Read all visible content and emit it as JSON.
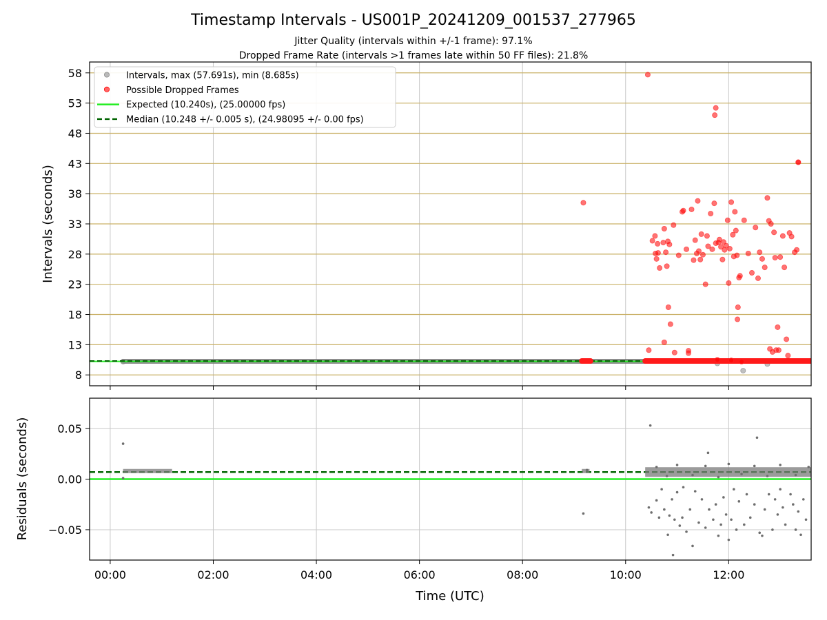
{
  "title": "Timestamp Intervals - US001P_20241209_001537_277965",
  "subtitle_1": "Jitter Quality (intervals within +/-1 frame): 97.1%",
  "subtitle_2": "Dropped Frame Rate (intervals >1 frames late within 50 FF files): 21.8%",
  "colors": {
    "interval_points": "#8c8c8c",
    "dropped_points": "#ff0000",
    "expected_line": "#22ee22",
    "median_line": "#006400",
    "top_grid": "#c9b066",
    "grid": "#c8c8c8"
  },
  "chart_data": [
    {
      "type": "scatter",
      "ylabel": "Intervals (seconds)",
      "ylim": [
        6.2,
        59.8
      ],
      "xlim": [
        -0.4,
        13.6
      ],
      "yticks": [
        "8",
        "13",
        "18",
        "23",
        "28",
        "33",
        "38",
        "43",
        "48",
        "53",
        "58"
      ],
      "grid": "on",
      "legend_position": "top-left",
      "legend": [
        {
          "label": "Intervals, max (57.691s), min (8.685s)",
          "marker": "circle",
          "color": "#8c8c8c"
        },
        {
          "label": "Possible Dropped Frames",
          "marker": "circle",
          "color": "#ff0000"
        },
        {
          "label": "Expected (10.240s), (25.00000 fps)",
          "marker": "line",
          "color": "#22ee22"
        },
        {
          "label": "Median (10.248 +/- 0.005 s), (24.98095 +/- 0.00 fps)",
          "marker": "dashed",
          "color": "#006400"
        }
      ],
      "expected_value": 10.24,
      "median_value": 10.248,
      "series": [
        {
          "name": "Intervals, max (57.691s), min (8.685s)",
          "segment": {
            "x_start": 0.25,
            "x_end": 13.6,
            "y": 10.248
          },
          "points": [
            [
              0.25,
              10.2
            ],
            [
              11.78,
              9.9
            ],
            [
              12.28,
              8.7
            ],
            [
              12.75,
              9.8
            ]
          ]
        },
        {
          "name": "Possible Dropped Frames",
          "segments": [
            {
              "x_start": 9.15,
              "x_end": 9.32,
              "y": 10.3
            },
            {
              "x_start": 10.38,
              "x_end": 13.6,
              "y": 10.3
            }
          ],
          "points": [
            [
              10.43,
              57.7
            ],
            [
              9.18,
              36.5
            ],
            [
              11.75,
              52.2
            ],
            [
              11.73,
              51.0
            ],
            [
              13.35,
              43.2
            ],
            [
              10.45,
              12.1
            ],
            [
              10.52,
              30.2
            ],
            [
              10.57,
              31.0
            ],
            [
              10.58,
              28.1
            ],
            [
              10.62,
              29.7
            ],
            [
              10.6,
              27.2
            ],
            [
              10.63,
              28.2
            ],
            [
              10.66,
              25.7
            ],
            [
              10.73,
              29.9
            ],
            [
              10.75,
              32.2
            ],
            [
              10.78,
              28.3
            ],
            [
              10.82,
              30.1
            ],
            [
              10.85,
              29.6
            ],
            [
              10.8,
              26.0
            ],
            [
              10.83,
              19.2
            ],
            [
              10.87,
              16.4
            ],
            [
              10.75,
              13.4
            ],
            [
              10.95,
              11.7
            ],
            [
              10.93,
              32.8
            ],
            [
              11.03,
              27.8
            ],
            [
              11.1,
              35.0
            ],
            [
              11.12,
              35.2
            ],
            [
              11.18,
              28.8
            ],
            [
              11.22,
              11.6
            ],
            [
              11.22,
              12.0
            ],
            [
              11.28,
              35.4
            ],
            [
              11.32,
              27.0
            ],
            [
              11.35,
              30.3
            ],
            [
              11.38,
              28.1
            ],
            [
              11.4,
              36.8
            ],
            [
              11.42,
              28.5
            ],
            [
              11.45,
              27.1
            ],
            [
              11.47,
              31.3
            ],
            [
              11.5,
              27.9
            ],
            [
              11.55,
              23.0
            ],
            [
              11.58,
              31.0
            ],
            [
              11.6,
              29.3
            ],
            [
              11.65,
              34.7
            ],
            [
              11.68,
              28.8
            ],
            [
              11.72,
              36.4
            ],
            [
              11.75,
              29.8
            ],
            [
              11.78,
              10.5
            ],
            [
              11.8,
              29.9
            ],
            [
              11.82,
              30.4
            ],
            [
              11.85,
              29.2
            ],
            [
              11.88,
              27.1
            ],
            [
              11.9,
              30.0
            ],
            [
              11.92,
              28.7
            ],
            [
              11.95,
              29.4
            ],
            [
              11.98,
              33.6
            ],
            [
              12.0,
              23.2
            ],
            [
              12.02,
              28.9
            ],
            [
              12.05,
              10.4
            ],
            [
              12.05,
              36.6
            ],
            [
              12.08,
              31.2
            ],
            [
              12.1,
              27.6
            ],
            [
              12.12,
              35.0
            ],
            [
              12.14,
              31.9
            ],
            [
              12.16,
              27.8
            ],
            [
              12.2,
              24.1
            ],
            [
              12.22,
              24.4
            ],
            [
              12.18,
              19.2
            ],
            [
              12.17,
              17.2
            ],
            [
              12.25,
              10.2
            ],
            [
              12.3,
              33.6
            ],
            [
              12.38,
              28.1
            ],
            [
              12.45,
              24.9
            ],
            [
              12.52,
              32.4
            ],
            [
              12.57,
              24.0
            ],
            [
              12.6,
              28.3
            ],
            [
              12.65,
              27.2
            ],
            [
              12.7,
              25.8
            ],
            [
              12.75,
              37.3
            ],
            [
              12.78,
              33.5
            ],
            [
              12.8,
              12.3
            ],
            [
              12.82,
              33.0
            ],
            [
              12.85,
              11.8
            ],
            [
              12.88,
              31.6
            ],
            [
              12.9,
              27.4
            ],
            [
              12.92,
              12.1
            ],
            [
              12.95,
              15.9
            ],
            [
              12.97,
              12.1
            ],
            [
              13.0,
              27.5
            ],
            [
              13.05,
              31.0
            ],
            [
              13.08,
              25.8
            ],
            [
              13.12,
              13.9
            ],
            [
              13.15,
              11.2
            ],
            [
              13.18,
              31.5
            ],
            [
              13.22,
              30.9
            ],
            [
              13.28,
              28.3
            ],
            [
              13.32,
              28.7
            ],
            [
              13.35,
              43.2
            ]
          ]
        },
        {
          "name": "Expected (10.240s), (25.00000 fps)",
          "type": "line",
          "y": 10.24
        },
        {
          "name": "Median (10.248 +/- 0.005 s), (24.98095 +/- 0.00 fps)",
          "type": "dashed-line",
          "y": 10.248
        }
      ]
    },
    {
      "type": "scatter",
      "ylabel": "Residuals (seconds)",
      "xlabel": "Time (UTC)",
      "ylim": [
        -0.08,
        0.08
      ],
      "xlim": [
        -0.4,
        13.6
      ],
      "yticks": [
        "0.05",
        "0.00",
        "−0.05"
      ],
      "ytick_values": [
        0.05,
        0.0,
        -0.05
      ],
      "xticks": [
        "00:00",
        "02:00",
        "04:00",
        "06:00",
        "08:00",
        "10:00",
        "12:00"
      ],
      "xtick_values": [
        0,
        2,
        4,
        6,
        8,
        10,
        12
      ],
      "grid": "on",
      "expected_value": 0.0,
      "median_value": 0.007,
      "series": [
        {
          "name": "Residuals",
          "segments": [
            {
              "x_start": 0.25,
              "x_end": 1.2,
              "y": 0.008
            },
            {
              "x_start": 9.15,
              "x_end": 9.3,
              "y": 0.008
            },
            {
              "x_start": 10.38,
              "x_end": 13.6,
              "y": 0.007
            }
          ],
          "points": [
            [
              0.25,
              0.035
            ],
            [
              0.25,
              0.001
            ],
            [
              9.18,
              -0.034
            ],
            [
              9.25,
              0.009
            ],
            [
              10.48,
              0.053
            ],
            [
              10.45,
              -0.028
            ],
            [
              10.5,
              -0.033
            ],
            [
              10.6,
              -0.021
            ],
            [
              10.65,
              -0.038
            ],
            [
              10.7,
              -0.01
            ],
            [
              10.75,
              -0.03
            ],
            [
              10.82,
              -0.055
            ],
            [
              10.85,
              -0.036
            ],
            [
              10.9,
              -0.02
            ],
            [
              10.92,
              -0.075
            ],
            [
              10.95,
              -0.04
            ],
            [
              11.0,
              -0.013
            ],
            [
              11.05,
              -0.046
            ],
            [
              11.1,
              -0.038
            ],
            [
              11.12,
              -0.008
            ],
            [
              11.18,
              -0.052
            ],
            [
              11.25,
              -0.03
            ],
            [
              11.3,
              -0.066
            ],
            [
              11.35,
              -0.012
            ],
            [
              11.42,
              -0.043
            ],
            [
              11.48,
              -0.02
            ],
            [
              11.55,
              -0.048
            ],
            [
              11.6,
              0.026
            ],
            [
              11.62,
              -0.03
            ],
            [
              11.7,
              -0.04
            ],
            [
              11.75,
              -0.025
            ],
            [
              11.8,
              -0.056
            ],
            [
              11.85,
              -0.045
            ],
            [
              11.9,
              -0.018
            ],
            [
              11.95,
              -0.035
            ],
            [
              12.0,
              -0.06
            ],
            [
              12.05,
              -0.04
            ],
            [
              12.1,
              -0.01
            ],
            [
              12.15,
              -0.05
            ],
            [
              12.2,
              -0.022
            ],
            [
              12.3,
              -0.045
            ],
            [
              12.35,
              -0.015
            ],
            [
              12.42,
              -0.038
            ],
            [
              12.5,
              -0.025
            ],
            [
              12.55,
              0.041
            ],
            [
              12.6,
              -0.053
            ],
            [
              12.65,
              -0.056
            ],
            [
              12.7,
              -0.03
            ],
            [
              12.78,
              -0.015
            ],
            [
              12.85,
              -0.05
            ],
            [
              12.9,
              -0.02
            ],
            [
              12.95,
              -0.035
            ],
            [
              13.0,
              -0.01
            ],
            [
              13.05,
              -0.028
            ],
            [
              13.1,
              -0.045
            ],
            [
              13.2,
              -0.015
            ],
            [
              13.25,
              -0.025
            ],
            [
              13.3,
              -0.05
            ],
            [
              13.35,
              -0.032
            ],
            [
              13.4,
              -0.055
            ],
            [
              13.45,
              -0.02
            ],
            [
              13.5,
              -0.04
            ],
            [
              10.6,
              0.012
            ],
            [
              10.8,
              0.003
            ],
            [
              11.0,
              0.014
            ],
            [
              11.3,
              0.004
            ],
            [
              11.55,
              0.013
            ],
            [
              11.8,
              0.002
            ],
            [
              12.0,
              0.015
            ],
            [
              12.25,
              0.005
            ],
            [
              12.5,
              0.013
            ],
            [
              12.75,
              0.003
            ],
            [
              13.0,
              0.014
            ],
            [
              13.3,
              0.004
            ],
            [
              13.55,
              0.012
            ]
          ]
        },
        {
          "name": "Expected",
          "type": "line",
          "y": 0.0
        },
        {
          "name": "Median",
          "type": "dashed-line",
          "y": 0.007
        }
      ]
    }
  ]
}
